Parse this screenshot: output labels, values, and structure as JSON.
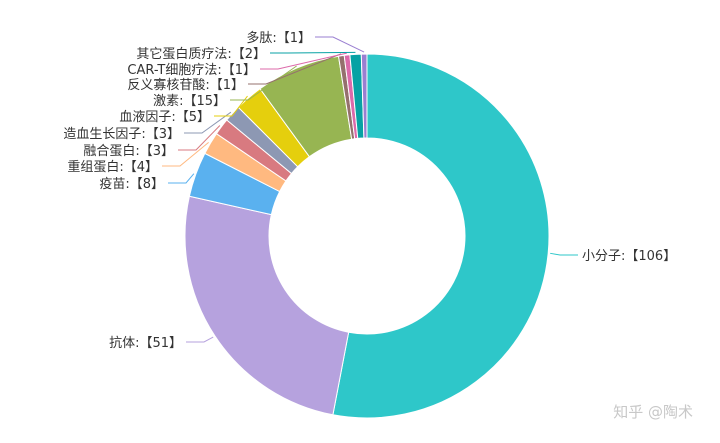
{
  "chart_data": {
    "type": "pie",
    "donut": true,
    "title": "",
    "series": [
      {
        "label": "小分子",
        "value": 106,
        "color": "#2ec7c9",
        "text": "小分子:【106】"
      },
      {
        "label": "抗体",
        "value": 51,
        "color": "#b6a2de",
        "text": "抗体:【51】"
      },
      {
        "label": "疫苗",
        "value": 8,
        "color": "#5ab1ef",
        "text": "疫苗:【8】"
      },
      {
        "label": "重组蛋白",
        "value": 4,
        "color": "#ffb980",
        "text": "重组蛋白:【4】"
      },
      {
        "label": "融合蛋白",
        "value": 3,
        "color": "#d87a80",
        "text": "融合蛋白:【3】"
      },
      {
        "label": "造血生长因子",
        "value": 3,
        "color": "#8d98b3",
        "text": "造血生长因子:【3】"
      },
      {
        "label": "血液因子",
        "value": 5,
        "color": "#e5cf0d",
        "text": "血液因子:【5】"
      },
      {
        "label": "激素",
        "value": 15,
        "color": "#97b552",
        "text": "激素:【15】"
      },
      {
        "label": "反义寡核苷酸",
        "value": 1,
        "color": "#95706d",
        "text": "反义寡核苷酸:【1】"
      },
      {
        "label": "CAR-T细胞疗法",
        "value": 1,
        "color": "#dc69aa",
        "text": "CAR-T细胞疗法:【1】"
      },
      {
        "label": "其它蛋白质疗法",
        "value": 2,
        "color": "#07a2a4",
        "text": "其它蛋白质疗法:【2】"
      },
      {
        "label": "多肽",
        "value": 1,
        "color": "#9a7fd1",
        "text": "多肽:【1】"
      }
    ]
  },
  "watermark": "知乎 @陶术"
}
